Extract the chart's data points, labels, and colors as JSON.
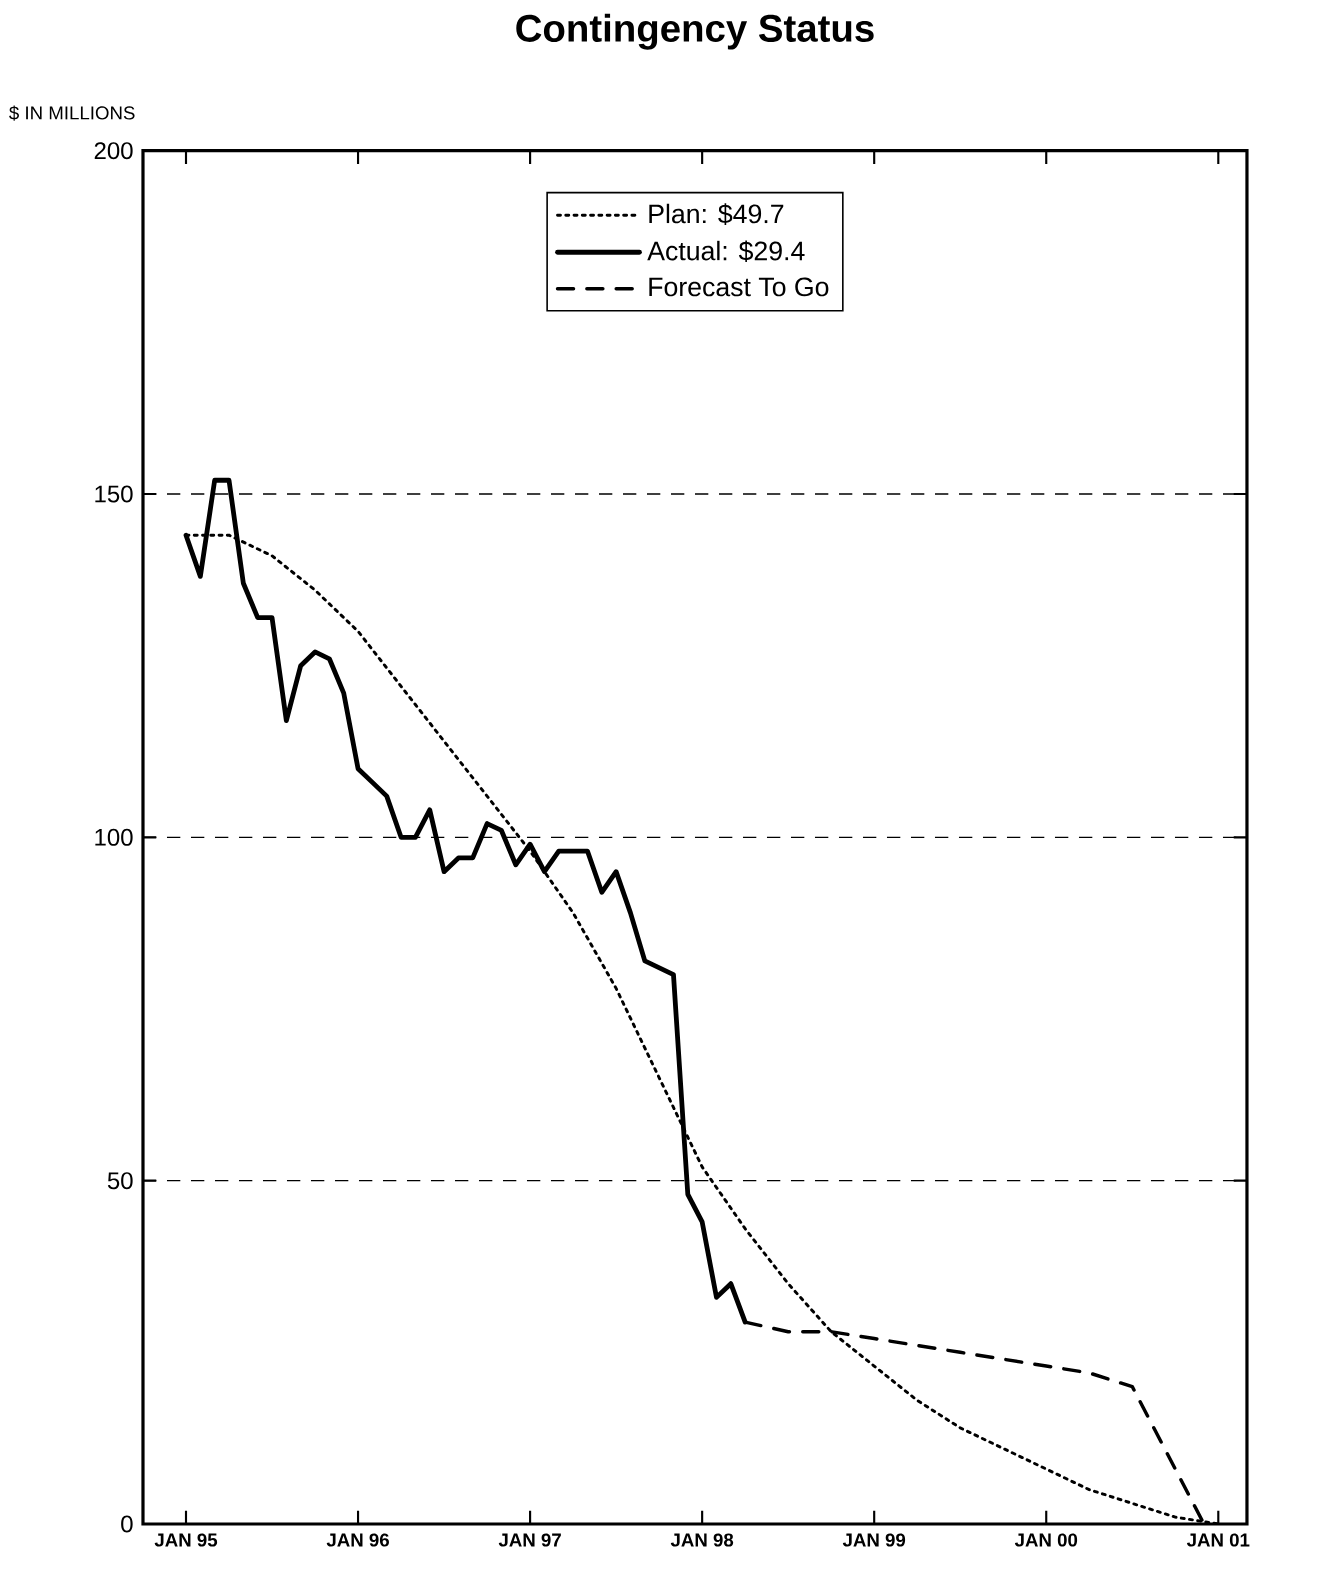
{
  "chart_data": {
    "type": "line",
    "title": "Contingency Status",
    "ylabel": "$ IN MILLIONS",
    "xlim": [
      "1994-10",
      "2001-03"
    ],
    "ylim": [
      0,
      200
    ],
    "xticks": [
      {
        "value": "1995-01",
        "label": "JAN 95"
      },
      {
        "value": "1996-01",
        "label": "JAN 96"
      },
      {
        "value": "1997-01",
        "label": "JAN 97"
      },
      {
        "value": "1998-01",
        "label": "JAN 98"
      },
      {
        "value": "1999-01",
        "label": "JAN 99"
      },
      {
        "value": "2000-01",
        "label": "JAN 00"
      },
      {
        "value": "2001-01",
        "label": "JAN 01"
      }
    ],
    "yticks": [
      0,
      50,
      100,
      150,
      200
    ],
    "grid": "y",
    "legend": "top",
    "series": [
      {
        "name": "Plan:  $49.7",
        "color": "#000000",
        "line_style": "dotted",
        "x": [
          "1995-01",
          "1995-04",
          "1995-07",
          "1995-10",
          "1996-01",
          "1996-04",
          "1996-07",
          "1996-10",
          "1997-01",
          "1997-04",
          "1997-07",
          "1997-10",
          "1998-01",
          "1998-04",
          "1998-07",
          "1998-10",
          "1999-01",
          "1999-04",
          "1999-07",
          "1999-10",
          "2000-01",
          "2000-04",
          "2000-07",
          "2000-10",
          "2001-01"
        ],
        "values": [
          144,
          144,
          141,
          136,
          130,
          122,
          114,
          106,
          98,
          89,
          78,
          65,
          52,
          43,
          35,
          28,
          23,
          18,
          14,
          11,
          8,
          5,
          3,
          1,
          0
        ]
      },
      {
        "name": "Actual:  $29.4",
        "color": "#000000",
        "line_style": "solid",
        "x": [
          "1995-01",
          "1995-02",
          "1995-03",
          "1995-04",
          "1995-05",
          "1995-06",
          "1995-07",
          "1995-08",
          "1995-09",
          "1995-10",
          "1995-11",
          "1995-12",
          "1996-01",
          "1996-02",
          "1996-03",
          "1996-04",
          "1996-05",
          "1996-06",
          "1996-07",
          "1996-08",
          "1996-09",
          "1996-10",
          "1996-11",
          "1996-12",
          "1997-01",
          "1997-02",
          "1997-03",
          "1997-04",
          "1997-05",
          "1997-06",
          "1997-07",
          "1997-08",
          "1997-09",
          "1997-10",
          "1997-11",
          "1997-12",
          "1998-01",
          "1998-02",
          "1998-03",
          "1998-04"
        ],
        "values": [
          144,
          138,
          152,
          152,
          137,
          132,
          132,
          117,
          125,
          127,
          126,
          121,
          110,
          108,
          106,
          100,
          100,
          104,
          95,
          97,
          97,
          102,
          101,
          96,
          99,
          95,
          98,
          98,
          98,
          92,
          95,
          89,
          82,
          81,
          80,
          48,
          44,
          33,
          35,
          29.4
        ]
      },
      {
        "name": "Forecast To Go",
        "color": "#000000",
        "line_style": "dashed",
        "x": [
          "1998-04",
          "1998-07",
          "1998-10",
          "1999-01",
          "1999-07",
          "2000-01",
          "2000-04",
          "2000-07",
          "2000-10",
          "2000-12"
        ],
        "values": [
          29.4,
          28,
          28,
          27,
          25,
          23,
          22,
          20,
          8,
          0
        ]
      }
    ]
  }
}
